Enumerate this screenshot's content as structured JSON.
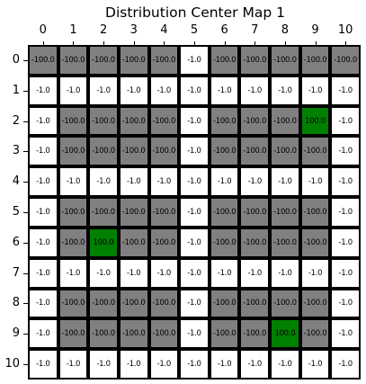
{
  "title": "Distribution Center Map 1",
  "columns": [
    "0",
    "1",
    "2",
    "3",
    "4",
    "5",
    "6",
    "7",
    "8",
    "9",
    "10"
  ],
  "rows": [
    "0",
    "1",
    "2",
    "3",
    "4",
    "5",
    "6",
    "7",
    "8",
    "9",
    "10"
  ],
  "legend_colors": {
    "obstacle": "#808080",
    "open": "#ffffff",
    "goal": "#008000"
  },
  "grid": [
    [
      "-100.0",
      "-100.0",
      "-100.0",
      "-100.0",
      "-100.0",
      "-1.0",
      "-100.0",
      "-100.0",
      "-100.0",
      "-100.0",
      "-100.0"
    ],
    [
      "-1.0",
      "-1.0",
      "-1.0",
      "-1.0",
      "-1.0",
      "-1.0",
      "-1.0",
      "-1.0",
      "-1.0",
      "-1.0",
      "-1.0"
    ],
    [
      "-1.0",
      "-100.0",
      "-100.0",
      "-100.0",
      "-100.0",
      "-1.0",
      "-100.0",
      "-100.0",
      "-100.0",
      "100.0",
      "-1.0"
    ],
    [
      "-1.0",
      "-100.0",
      "-100.0",
      "-100.0",
      "-100.0",
      "-1.0",
      "-100.0",
      "-100.0",
      "-100.0",
      "-100.0",
      "-1.0"
    ],
    [
      "-1.0",
      "-1.0",
      "-1.0",
      "-1.0",
      "-1.0",
      "-1.0",
      "-1.0",
      "-1.0",
      "-1.0",
      "-1.0",
      "-1.0"
    ],
    [
      "-1.0",
      "-100.0",
      "-100.0",
      "-100.0",
      "-100.0",
      "-1.0",
      "-100.0",
      "-100.0",
      "-100.0",
      "-100.0",
      "-1.0"
    ],
    [
      "-1.0",
      "-100.0",
      "100.0",
      "-100.0",
      "-100.0",
      "-1.0",
      "-100.0",
      "-100.0",
      "-100.0",
      "-100.0",
      "-1.0"
    ],
    [
      "-1.0",
      "-1.0",
      "-1.0",
      "-1.0",
      "-1.0",
      "-1.0",
      "-1.0",
      "-1.0",
      "-1.0",
      "-1.0",
      "-1.0"
    ],
    [
      "-1.0",
      "-100.0",
      "-100.0",
      "-100.0",
      "-100.0",
      "-1.0",
      "-100.0",
      "-100.0",
      "-100.0",
      "-100.0",
      "-1.0"
    ],
    [
      "-1.0",
      "-100.0",
      "-100.0",
      "-100.0",
      "-100.0",
      "-1.0",
      "-100.0",
      "-100.0",
      "100.0",
      "-100.0",
      "-1.0"
    ],
    [
      "-1.0",
      "-1.0",
      "-1.0",
      "-1.0",
      "-1.0",
      "-1.0",
      "-1.0",
      "-1.0",
      "-1.0",
      "-1.0",
      "-1.0"
    ]
  ]
}
